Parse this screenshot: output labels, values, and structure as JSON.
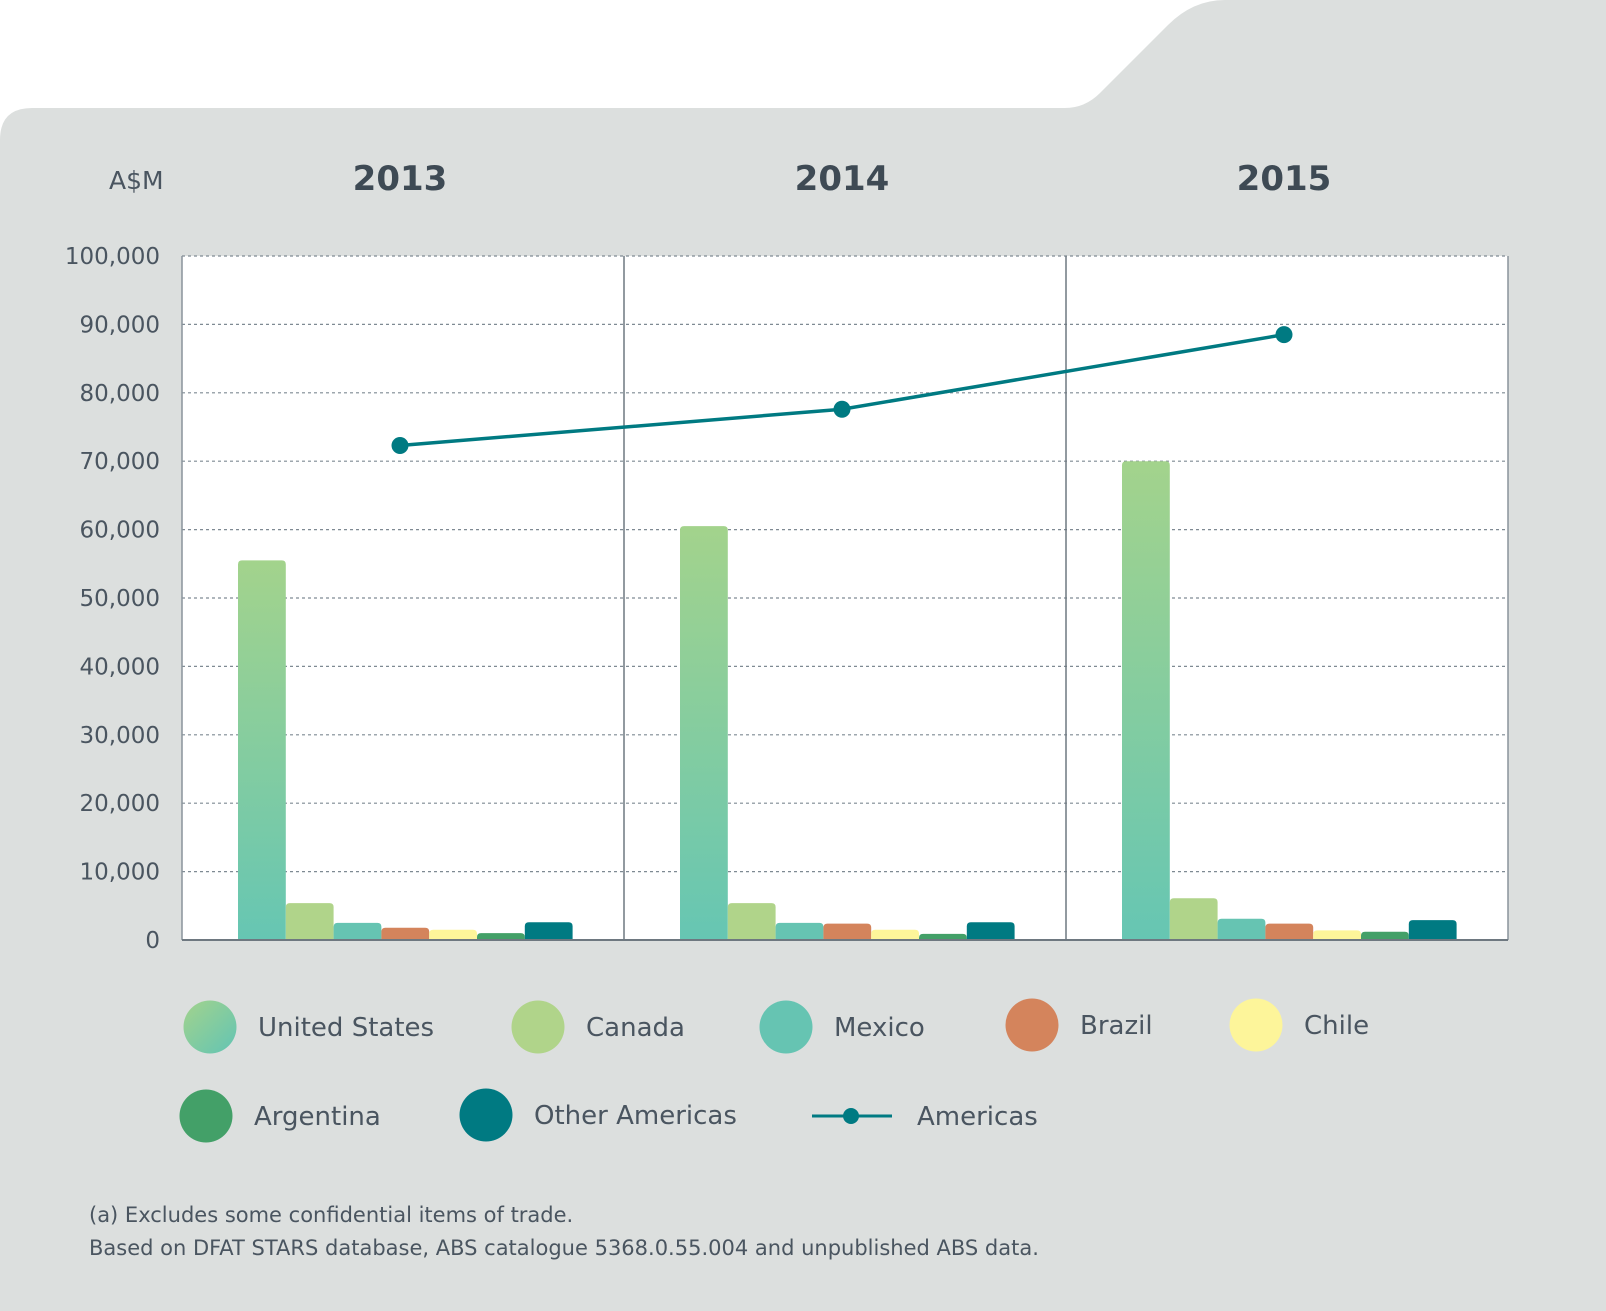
{
  "chart_data": {
    "type": "bar",
    "ylabel": "A$M",
    "ylim": [
      0,
      100000
    ],
    "yticks": [
      0,
      10000,
      20000,
      30000,
      40000,
      50000,
      60000,
      70000,
      80000,
      90000,
      100000
    ],
    "ytick_labels": [
      "0",
      "10,000",
      "20,000",
      "30,000",
      "40,000",
      "50,000",
      "60,000",
      "70,000",
      "80,000",
      "90,000",
      "100,000"
    ],
    "categories": [
      "2013",
      "2014",
      "2015"
    ],
    "grid": true,
    "legend_position": "bottom",
    "series": [
      {
        "name": "United States",
        "kind": "bar",
        "color": "#8fcc94",
        "values": [
          55500,
          60500,
          70000
        ]
      },
      {
        "name": "Canada",
        "kind": "bar",
        "color": "#b0d48a",
        "values": [
          5400,
          5400,
          6100
        ]
      },
      {
        "name": "Mexico",
        "kind": "bar",
        "color": "#66c4b2",
        "values": [
          2500,
          2500,
          3100
        ]
      },
      {
        "name": "Brazil",
        "kind": "bar",
        "color": "#d4845c",
        "values": [
          1800,
          2400,
          2400
        ]
      },
      {
        "name": "Chile",
        "kind": "bar",
        "color": "#fdf59a",
        "values": [
          1500,
          1500,
          1400
        ]
      },
      {
        "name": "Argentina",
        "kind": "bar",
        "color": "#43a068",
        "values": [
          1000,
          900,
          1200
        ]
      },
      {
        "name": "Other Americas",
        "kind": "bar",
        "color": "#007a82",
        "values": [
          2600,
          2600,
          2900
        ]
      },
      {
        "name": "Americas",
        "kind": "line",
        "color": "#007a82",
        "values": [
          72300,
          77600,
          88500
        ]
      }
    ],
    "footnotes": [
      "(a) Excludes some confidential items of trade.",
      "Based on DFAT STARS database, ABS catalogue 5368.0.55.004 and unpublished ABS data."
    ]
  }
}
